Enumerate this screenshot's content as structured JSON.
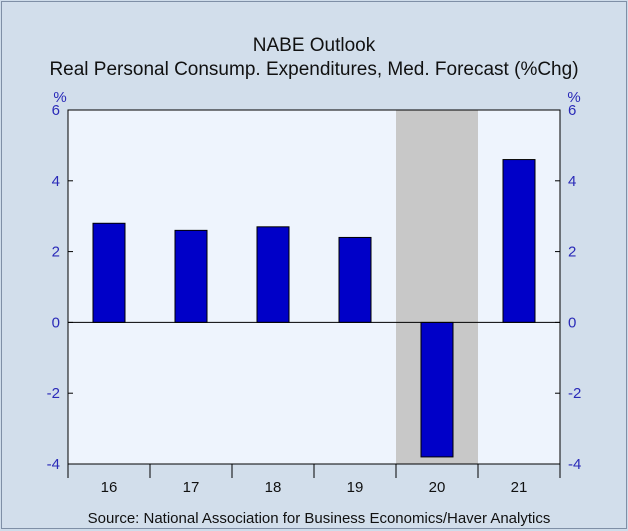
{
  "chart_data": {
    "type": "bar",
    "title": "NABE Outlook",
    "subtitle": "Real Personal Consump. Expenditures, Med. Forecast (%Chg)",
    "categories": [
      "16",
      "17",
      "18",
      "19",
      "20",
      "21"
    ],
    "series": [
      {
        "values": [
          2.8,
          2.6,
          2.7,
          2.4,
          -3.8,
          4.6
        ]
      }
    ],
    "ylim": [
      -4,
      6
    ],
    "yticks": [
      "6",
      "4",
      "2",
      "0",
      "-2",
      "-4"
    ],
    "yunit_left": "%",
    "yunit_right": "%",
    "shaded_category": "20",
    "source": "Source:  National Association for Business Economics/Haver Analytics",
    "colors": {
      "bar": "#0000c8",
      "bar_edge": "#000000",
      "plot_bg": "#eef4fd",
      "shade": "#c8c8c8",
      "tick_text": "#2a2ab8",
      "frame_bg": "#d2deeb"
    },
    "grid": false
  }
}
